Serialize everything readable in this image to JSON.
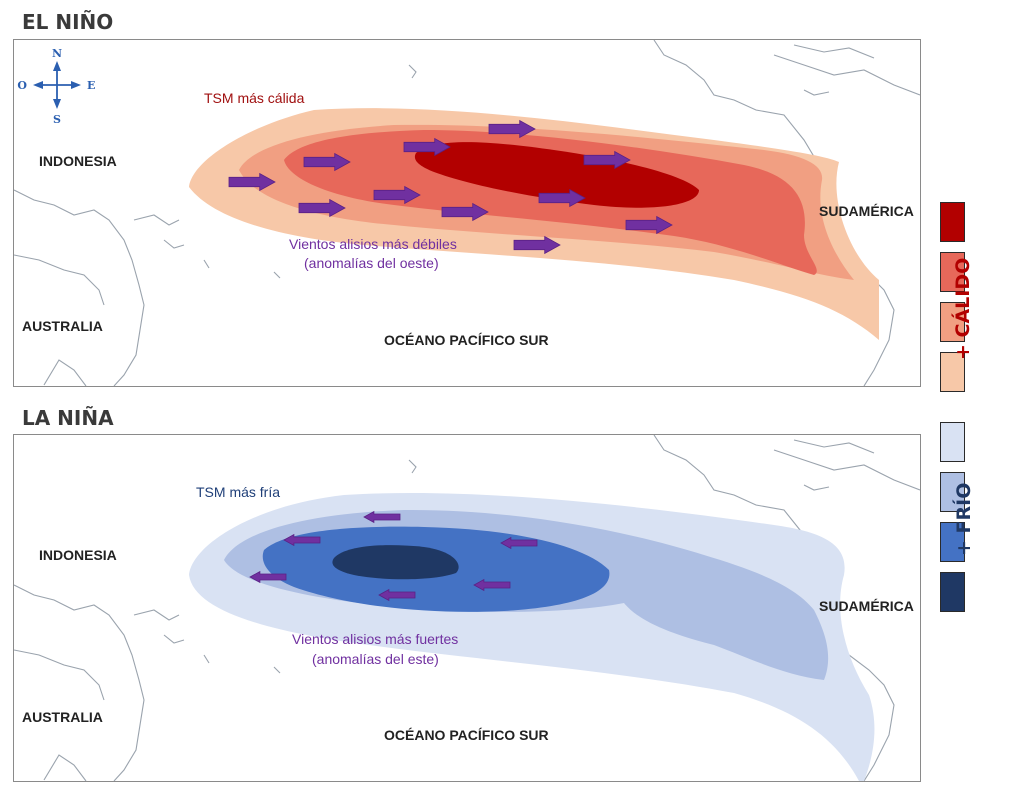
{
  "compass": {
    "north": "N",
    "south": "S",
    "east": "E",
    "west": "O"
  },
  "panels": [
    {
      "id": "el-nino",
      "title": "EL NIÑO",
      "labels": {
        "indonesia": "INDONESIA",
        "australia": "AUSTRALIA",
        "sudamerica": "SUDAMÉRICA",
        "ocean": "OCÉANO PACÍFICO SUR"
      },
      "sst_note": "TSM más cálida",
      "wind_note_line1": "Vientos alisios más débiles",
      "wind_note_line2": "(anomalías del oeste)",
      "wind_direction": "east",
      "anomaly_colors": [
        "#f7c8a8",
        "#f19f82",
        "#e7685a",
        "#b20000"
      ]
    },
    {
      "id": "la-nina",
      "title": "LA NIÑA",
      "labels": {
        "indonesia": "INDONESIA",
        "australia": "AUSTRALIA",
        "sudamerica": "SUDAMÉRICA",
        "ocean": "OCÉANO PACÍFICO SUR"
      },
      "sst_note": "TSM más fría",
      "wind_note_line1": "Vientos alisios más fuertes",
      "wind_note_line2": "(anomalías del este)",
      "wind_direction": "west",
      "anomaly_colors": [
        "#d9e2f3",
        "#aebfe3",
        "#4472c4",
        "#1f3864"
      ]
    }
  ],
  "legend": {
    "warm_label": "+ CÁLIDO",
    "cold_label": "+ FRÍO",
    "warm_colors": [
      "#b20000",
      "#e7685a",
      "#f19f82",
      "#f7c8a8"
    ],
    "cold_colors": [
      "#d9e2f3",
      "#aebfe3",
      "#4472c4",
      "#1f3864"
    ],
    "warm_text_color": "#b20000",
    "cold_text_color": "#1f3864"
  },
  "arrow_color": "#7030a0"
}
